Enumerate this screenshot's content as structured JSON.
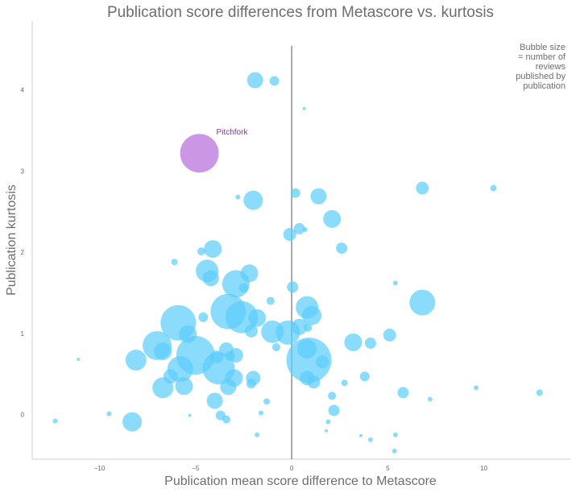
{
  "chart_data": {
    "type": "scatter",
    "title": "Publication score differences from Metascore vs. kurtosis",
    "xlabel": "Publication mean score difference to Metascore",
    "ylabel": "Publication kurtosis",
    "xlim": [
      -13.5,
      14.5
    ],
    "ylim": [
      -0.55,
      4.85
    ],
    "x_ticks": [
      "−10",
      "−5",
      "0",
      "5",
      "10"
    ],
    "x_tick_values": [
      -10,
      -5,
      0,
      5,
      10
    ],
    "y_ticks": [
      "0",
      "1",
      "2",
      "3",
      "4"
    ],
    "y_tick_values": [
      0,
      1,
      2,
      3,
      4
    ],
    "grid": false,
    "reference_line": {
      "x": 0
    },
    "annotation": "Bubble size\n= number of\nreviews\npublished by\npublication",
    "bubble_color": "#5dcdfb",
    "highlight_color": "#c890e2",
    "highlight": {
      "label": "Pitchfork",
      "x": -4.8,
      "y": 3.22,
      "size": 24
    },
    "points": [
      {
        "x": -1.9,
        "y": 4.12,
        "size": 10
      },
      {
        "x": -0.9,
        "y": 4.11,
        "size": 6
      },
      {
        "x": 0.65,
        "y": 3.77,
        "size": 2
      },
      {
        "x": -2.0,
        "y": 2.64,
        "size": 12
      },
      {
        "x": -2.8,
        "y": 2.68,
        "size": 3
      },
      {
        "x": 0.2,
        "y": 2.73,
        "size": 6
      },
      {
        "x": 1.4,
        "y": 2.69,
        "size": 10
      },
      {
        "x": 6.8,
        "y": 2.79,
        "size": 8
      },
      {
        "x": 10.5,
        "y": 2.79,
        "size": 4
      },
      {
        "x": 2.1,
        "y": 2.41,
        "size": 11
      },
      {
        "x": 0.4,
        "y": 2.29,
        "size": 7
      },
      {
        "x": 0.7,
        "y": 2.28,
        "size": 3
      },
      {
        "x": -0.1,
        "y": 2.22,
        "size": 8
      },
      {
        "x": 2.6,
        "y": 2.05,
        "size": 7
      },
      {
        "x": -4.1,
        "y": 2.04,
        "size": 11
      },
      {
        "x": -4.7,
        "y": 2.01,
        "size": 5
      },
      {
        "x": -6.1,
        "y": 1.88,
        "size": 4
      },
      {
        "x": -4.4,
        "y": 1.77,
        "size": 14
      },
      {
        "x": -2.2,
        "y": 1.74,
        "size": 11
      },
      {
        "x": -4.2,
        "y": 1.68,
        "size": 10
      },
      {
        "x": -2.9,
        "y": 1.61,
        "size": 17
      },
      {
        "x": 5.4,
        "y": 1.62,
        "size": 3
      },
      {
        "x": 0.05,
        "y": 1.57,
        "size": 7
      },
      {
        "x": -2.5,
        "y": 1.56,
        "size": 6
      },
      {
        "x": 6.8,
        "y": 1.38,
        "size": 16
      },
      {
        "x": -5.9,
        "y": 1.13,
        "size": 22
      },
      {
        "x": -3.3,
        "y": 1.27,
        "size": 22
      },
      {
        "x": -1.1,
        "y": 1.4,
        "size": 5
      },
      {
        "x": 0.8,
        "y": 1.32,
        "size": 14
      },
      {
        "x": 1.05,
        "y": 1.22,
        "size": 12
      },
      {
        "x": -2.6,
        "y": 1.2,
        "size": 20
      },
      {
        "x": -1.8,
        "y": 1.19,
        "size": 11
      },
      {
        "x": -4.6,
        "y": 1.2,
        "size": 6
      },
      {
        "x": -2.1,
        "y": 1.03,
        "size": 8
      },
      {
        "x": -1.0,
        "y": 1.02,
        "size": 14
      },
      {
        "x": -0.2,
        "y": 1.01,
        "size": 15
      },
      {
        "x": 0.4,
        "y": 1.08,
        "size": 10
      },
      {
        "x": 0.85,
        "y": 1.07,
        "size": 5
      },
      {
        "x": -5.4,
        "y": 0.99,
        "size": 11
      },
      {
        "x": 5.1,
        "y": 0.98,
        "size": 8
      },
      {
        "x": 3.2,
        "y": 0.89,
        "size": 11
      },
      {
        "x": 4.1,
        "y": 0.88,
        "size": 7
      },
      {
        "x": -0.8,
        "y": 0.83,
        "size": 5
      },
      {
        "x": -7.0,
        "y": 0.85,
        "size": 18
      },
      {
        "x": -5.0,
        "y": 0.73,
        "size": 24
      },
      {
        "x": -6.7,
        "y": 0.78,
        "size": 11
      },
      {
        "x": -3.4,
        "y": 0.8,
        "size": 9
      },
      {
        "x": -8.1,
        "y": 0.67,
        "size": 13
      },
      {
        "x": -11.1,
        "y": 0.68,
        "size": 2
      },
      {
        "x": -3.9,
        "y": 0.71,
        "size": 8
      },
      {
        "x": -3.2,
        "y": 0.72,
        "size": 6
      },
      {
        "x": -2.9,
        "y": 0.73,
        "size": 9
      },
      {
        "x": 0.8,
        "y": 0.81,
        "size": 12
      },
      {
        "x": 0.9,
        "y": 0.67,
        "size": 28
      },
      {
        "x": 1.6,
        "y": 0.65,
        "size": 8
      },
      {
        "x": -3.8,
        "y": 0.57,
        "size": 20
      },
      {
        "x": -5.8,
        "y": 0.56,
        "size": 16
      },
      {
        "x": -6.3,
        "y": 0.47,
        "size": 9
      },
      {
        "x": -3.0,
        "y": 0.45,
        "size": 11
      },
      {
        "x": -2.0,
        "y": 0.45,
        "size": 9
      },
      {
        "x": 0.8,
        "y": 0.45,
        "size": 9
      },
      {
        "x": 1.15,
        "y": 0.4,
        "size": 8
      },
      {
        "x": 3.8,
        "y": 0.47,
        "size": 6
      },
      {
        "x": 2.75,
        "y": 0.39,
        "size": 4
      },
      {
        "x": -6.7,
        "y": 0.33,
        "size": 13
      },
      {
        "x": -5.6,
        "y": 0.35,
        "size": 11
      },
      {
        "x": -3.3,
        "y": 0.34,
        "size": 10
      },
      {
        "x": -2.1,
        "y": 0.38,
        "size": 6
      },
      {
        "x": 5.8,
        "y": 0.27,
        "size": 7
      },
      {
        "x": 7.2,
        "y": 0.19,
        "size": 3
      },
      {
        "x": 9.6,
        "y": 0.33,
        "size": 3
      },
      {
        "x": 12.9,
        "y": 0.27,
        "size": 4
      },
      {
        "x": 2.1,
        "y": 0.23,
        "size": 5
      },
      {
        "x": -4.0,
        "y": 0.17,
        "size": 10
      },
      {
        "x": -1.3,
        "y": 0.16,
        "size": 4
      },
      {
        "x": 2.2,
        "y": 0.05,
        "size": 7
      },
      {
        "x": -1.6,
        "y": 0.02,
        "size": 3
      },
      {
        "x": -3.7,
        "y": -0.01,
        "size": 6
      },
      {
        "x": -3.4,
        "y": -0.06,
        "size": 5
      },
      {
        "x": -5.3,
        "y": -0.01,
        "size": 2
      },
      {
        "x": -9.5,
        "y": 0.01,
        "size": 3
      },
      {
        "x": -8.3,
        "y": -0.09,
        "size": 12
      },
      {
        "x": -12.3,
        "y": -0.08,
        "size": 3
      },
      {
        "x": 1.9,
        "y": -0.09,
        "size": 3
      },
      {
        "x": 1.8,
        "y": -0.2,
        "size": 2
      },
      {
        "x": -1.8,
        "y": -0.25,
        "size": 3
      },
      {
        "x": 3.6,
        "y": -0.26,
        "size": 2
      },
      {
        "x": 4.1,
        "y": -0.31,
        "size": 3
      },
      {
        "x": 5.4,
        "y": -0.25,
        "size": 3
      },
      {
        "x": 5.35,
        "y": -0.45,
        "size": 3
      }
    ]
  }
}
